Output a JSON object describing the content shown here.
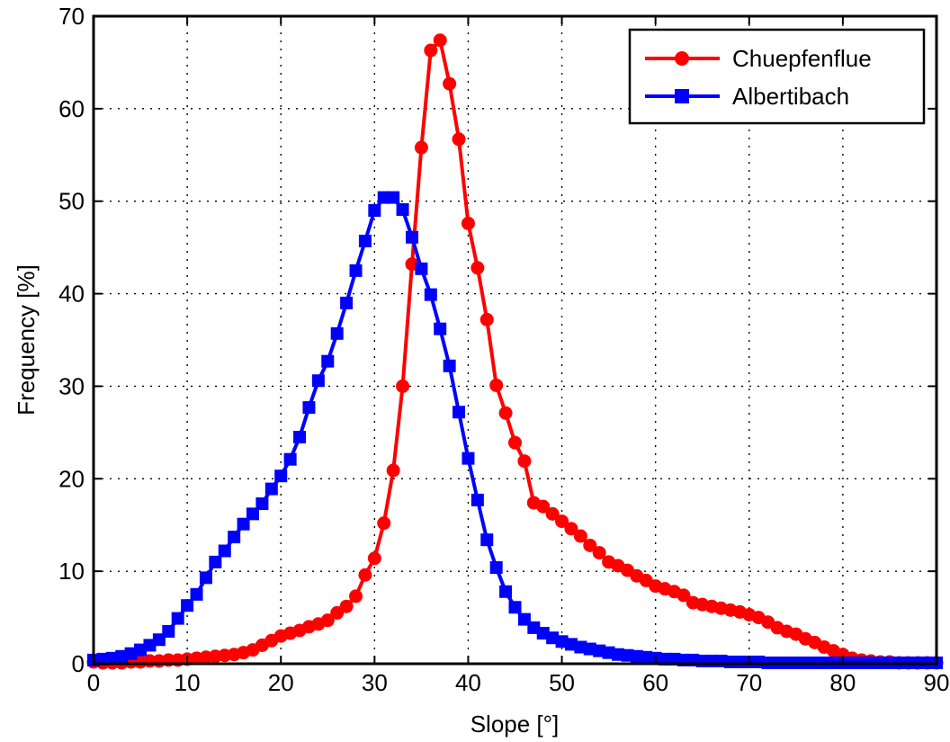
{
  "chart_data": {
    "type": "line",
    "xlabel": "Slope [°]",
    "ylabel": "Frequency [%]",
    "xlim": [
      0,
      90
    ],
    "ylim": [
      0,
      70
    ],
    "xticks": [
      0,
      10,
      20,
      30,
      40,
      50,
      60,
      70,
      80,
      90
    ],
    "yticks": [
      0,
      10,
      20,
      30,
      40,
      50,
      60,
      70
    ],
    "xtick_labels": [
      "0",
      "10",
      "20",
      "30",
      "40",
      "50",
      "60",
      "70",
      "80",
      "90"
    ],
    "ytick_labels": [
      "0",
      "10",
      "20",
      "30",
      "40",
      "50",
      "60",
      "70"
    ],
    "grid": true,
    "legend_position": "top-right",
    "x": [
      0,
      1,
      2,
      3,
      4,
      5,
      6,
      7,
      8,
      9,
      10,
      11,
      12,
      13,
      14,
      15,
      16,
      17,
      18,
      19,
      20,
      21,
      22,
      23,
      24,
      25,
      26,
      27,
      28,
      29,
      30,
      31,
      32,
      33,
      34,
      35,
      36,
      37,
      38,
      39,
      40,
      41,
      42,
      43,
      44,
      45,
      46,
      47,
      48,
      49,
      50,
      51,
      52,
      53,
      54,
      55,
      56,
      57,
      58,
      59,
      60,
      61,
      62,
      63,
      64,
      65,
      66,
      67,
      68,
      69,
      70,
      71,
      72,
      73,
      74,
      75,
      76,
      77,
      78,
      79,
      80,
      81,
      82,
      83,
      84,
      85,
      86,
      87,
      88,
      89,
      90
    ],
    "series": [
      {
        "name": "Chuepfenflue",
        "color": "#ff0000",
        "marker": "circle",
        "values": [
          0.2,
          0.1,
          0.1,
          0.1,
          0.2,
          0.2,
          0.3,
          0.3,
          0.4,
          0.4,
          0.5,
          0.6,
          0.7,
          0.8,
          0.9,
          1.0,
          1.2,
          1.5,
          2.0,
          2.5,
          3.0,
          3.3,
          3.6,
          4.0,
          4.3,
          4.7,
          5.5,
          6.2,
          7.3,
          9.6,
          11.4,
          15.2,
          20.9,
          30.0,
          43.2,
          55.8,
          66.3,
          67.4,
          62.7,
          56.7,
          47.6,
          42.8,
          37.2,
          30.1,
          27.1,
          23.9,
          21.9,
          17.4,
          17.0,
          16.2,
          15.4,
          14.6,
          13.8,
          12.8,
          12.0,
          11.0,
          10.6,
          10.1,
          9.5,
          9.0,
          8.4,
          8.1,
          7.8,
          7.4,
          6.6,
          6.4,
          6.2,
          6.0,
          5.8,
          5.6,
          5.3,
          5.0,
          4.5,
          3.9,
          3.5,
          3.2,
          2.7,
          2.3,
          1.8,
          1.4,
          1.0,
          0.6,
          0.4,
          0.3,
          0.2,
          0.2,
          0.1,
          0.1,
          0.1,
          0.1,
          0.1
        ]
      },
      {
        "name": "Albertibach",
        "color": "#0000ff",
        "marker": "square",
        "values": [
          0.4,
          0.5,
          0.6,
          0.8,
          1.1,
          1.5,
          2.0,
          2.6,
          3.5,
          4.9,
          6.3,
          7.5,
          9.3,
          11.0,
          12.2,
          13.7,
          15.1,
          16.2,
          17.3,
          18.9,
          20.3,
          22.1,
          24.5,
          27.7,
          30.6,
          32.7,
          35.7,
          39.0,
          42.5,
          45.7,
          49.0,
          50.4,
          50.4,
          49.1,
          46.1,
          42.7,
          39.9,
          36.2,
          32.2,
          27.2,
          22.2,
          17.7,
          13.4,
          10.4,
          7.8,
          6.1,
          4.8,
          3.9,
          3.3,
          2.8,
          2.4,
          2.1,
          1.8,
          1.6,
          1.4,
          1.2,
          1.0,
          0.9,
          0.8,
          0.7,
          0.6,
          0.5,
          0.5,
          0.4,
          0.4,
          0.3,
          0.3,
          0.3,
          0.2,
          0.2,
          0.2,
          0.2,
          0.1,
          0.1,
          0.1,
          0.1,
          0.1,
          0.1,
          0.1,
          0.1,
          0.1,
          0.1,
          0.1,
          0.1,
          0.1,
          0.1,
          0.1,
          0.1,
          0.1,
          0.1,
          0.1
        ]
      }
    ]
  }
}
